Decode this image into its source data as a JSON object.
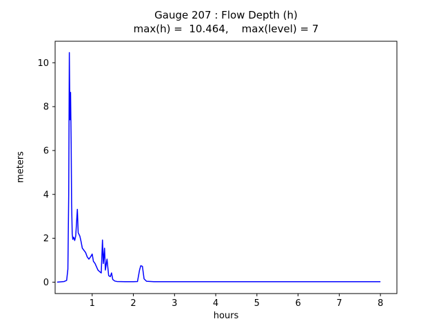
{
  "chart_data": {
    "type": "line",
    "title": "Gauge 207 : Flow Depth (h)",
    "subtitle": "max(h) =  10.464,    max(level) = 7",
    "xlabel": "hours",
    "ylabel": "meters",
    "xlim": [
      0.1,
      8.4
    ],
    "ylim": [
      -0.52,
      10.98
    ],
    "xticks": [
      1,
      2,
      3,
      4,
      5,
      6,
      7,
      8
    ],
    "yticks": [
      0,
      2,
      4,
      6,
      8,
      10
    ],
    "grid": false,
    "legend": "none",
    "line_color": "#0000ff",
    "axis_color": "#000000",
    "background_color": "#ffffff",
    "series": [
      {
        "name": "flow-depth-h",
        "points": [
          [
            0.15,
            0.0
          ],
          [
            0.32,
            0.03
          ],
          [
            0.38,
            0.08
          ],
          [
            0.41,
            0.6
          ],
          [
            0.43,
            4.0
          ],
          [
            0.445,
            10.464
          ],
          [
            0.46,
            7.4
          ],
          [
            0.475,
            8.65
          ],
          [
            0.49,
            6.2
          ],
          [
            0.5,
            3.6
          ],
          [
            0.515,
            2.2
          ],
          [
            0.53,
            1.95
          ],
          [
            0.55,
            2.05
          ],
          [
            0.575,
            1.9
          ],
          [
            0.6,
            2.1
          ],
          [
            0.64,
            3.32
          ],
          [
            0.66,
            2.25
          ],
          [
            0.7,
            2.1
          ],
          [
            0.73,
            1.85
          ],
          [
            0.76,
            1.55
          ],
          [
            0.8,
            1.45
          ],
          [
            0.84,
            1.35
          ],
          [
            0.88,
            1.15
          ],
          [
            0.92,
            1.05
          ],
          [
            0.96,
            1.15
          ],
          [
            1.0,
            1.28
          ],
          [
            1.03,
            0.95
          ],
          [
            1.07,
            0.85
          ],
          [
            1.1,
            0.72
          ],
          [
            1.14,
            0.55
          ],
          [
            1.18,
            0.48
          ],
          [
            1.22,
            0.42
          ],
          [
            1.25,
            1.92
          ],
          [
            1.27,
            0.85
          ],
          [
            1.3,
            1.55
          ],
          [
            1.32,
            0.55
          ],
          [
            1.36,
            1.05
          ],
          [
            1.4,
            0.3
          ],
          [
            1.44,
            0.25
          ],
          [
            1.47,
            0.42
          ],
          [
            1.5,
            0.12
          ],
          [
            1.55,
            0.05
          ],
          [
            1.6,
            0.03
          ],
          [
            1.8,
            0.02
          ],
          [
            2.0,
            0.02
          ],
          [
            2.1,
            0.03
          ],
          [
            2.15,
            0.55
          ],
          [
            2.18,
            0.75
          ],
          [
            2.22,
            0.72
          ],
          [
            2.26,
            0.15
          ],
          [
            2.32,
            0.04
          ],
          [
            2.5,
            0.02
          ],
          [
            3.0,
            0.02
          ],
          [
            3.5,
            0.02
          ],
          [
            4.0,
            0.02
          ],
          [
            4.5,
            0.02
          ],
          [
            5.0,
            0.02
          ],
          [
            5.5,
            0.02
          ],
          [
            6.0,
            0.02
          ],
          [
            6.5,
            0.02
          ],
          [
            7.0,
            0.02
          ],
          [
            7.5,
            0.02
          ],
          [
            8.0,
            0.02
          ]
        ]
      }
    ]
  }
}
